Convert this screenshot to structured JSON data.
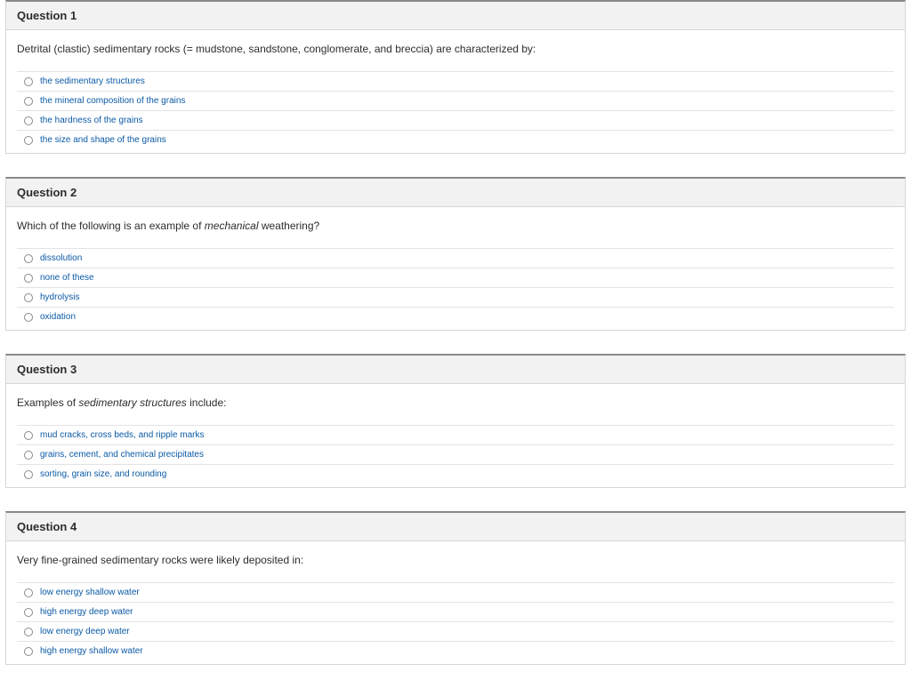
{
  "colors": {
    "link": "#0b5aa6",
    "header_bg": "#f2f2f2",
    "border": "#d6d6d6",
    "top_border": "#888888",
    "row_border": "#e3e3e3",
    "text": "#2d2d2d"
  },
  "questions": [
    {
      "title": "Question 1",
      "prompt_html": "Detrital (clastic) sedimentary rocks (= mudstone, sandstone, conglomerate, and breccia) are characterized by:",
      "options": [
        "the sedimentary structures",
        "the mineral composition of the grains",
        "the hardness of the grains",
        "the size and shape of the grains"
      ]
    },
    {
      "title": "Question 2",
      "prompt_html": "Which of the following is an example of <em>mechanical</em> weathering?",
      "options": [
        "dissolution",
        "none of these",
        "hydrolysis",
        "oxidation"
      ]
    },
    {
      "title": "Question 3",
      "prompt_html": "Examples of <em>sedimentary structures</em> include:",
      "options": [
        "mud cracks, cross beds, and ripple marks",
        "grains, cement, and chemical precipitates",
        "sorting, grain size, and rounding"
      ]
    },
    {
      "title": "Question 4",
      "prompt_html": "Very fine-grained sedimentary rocks were likely deposited in:",
      "options": [
        "low energy shallow water",
        "high energy deep water",
        "low energy deep water",
        "high energy shallow water"
      ]
    }
  ]
}
